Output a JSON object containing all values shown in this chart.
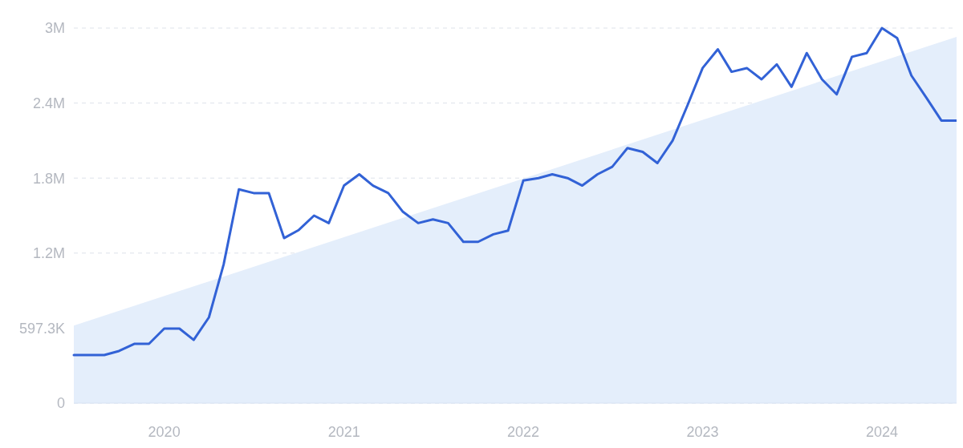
{
  "chart_data": {
    "type": "line",
    "xlim": [
      "2019-07",
      "2024-06"
    ],
    "ylim": [
      0,
      3000000
    ],
    "yticks": [
      0,
      {
        "value": 597300,
        "label": "597.3K"
      },
      {
        "value": 1200000,
        "label": "1.2M"
      },
      {
        "value": 1800000,
        "label": "1.8M"
      },
      {
        "value": 2400000,
        "label": "2.4M"
      },
      {
        "value": 3000000,
        "label": "3M"
      }
    ],
    "xticks": [
      {
        "value": "2020-01",
        "label": "2020"
      },
      {
        "value": "2021-01",
        "label": "2021"
      },
      {
        "value": "2022-01",
        "label": "2022"
      },
      {
        "value": "2023-01",
        "label": "2023"
      },
      {
        "value": "2024-01",
        "label": "2024"
      }
    ],
    "grid": "y",
    "line_style": "solid",
    "series": [
      {
        "type": "area",
        "color": "#e4eefb",
        "x": [
          "2019-07",
          "2024-06"
        ],
        "values": [
          620000,
          2930000
        ]
      },
      {
        "color": "#3262d6",
        "x": [
          "2019-07",
          "2019-08",
          "2019-09",
          "2019-10",
          "2019-11",
          "2019-12",
          "2020-01",
          "2020-02",
          "2020-03",
          "2020-04",
          "2020-05",
          "2020-06",
          "2020-07",
          "2020-08",
          "2020-09",
          "2020-10",
          "2020-11",
          "2020-12",
          "2021-01",
          "2021-02",
          "2021-03",
          "2021-04",
          "2021-05",
          "2021-06",
          "2021-07",
          "2021-08",
          "2021-09",
          "2021-10",
          "2021-11",
          "2021-12",
          "2022-01",
          "2022-02",
          "2022-03",
          "2022-04",
          "2022-05",
          "2022-06",
          "2022-07",
          "2022-08",
          "2022-09",
          "2022-10",
          "2022-11",
          "2022-12",
          "2023-01",
          "2023-02",
          "2023-03",
          "2023-04",
          "2023-05",
          "2023-06",
          "2023-07",
          "2023-08",
          "2023-09",
          "2023-10",
          "2023-11",
          "2023-12",
          "2024-01",
          "2024-02",
          "2024-03",
          "2024-04",
          "2024-05",
          "2024-06"
        ],
        "values": [
          385000,
          385000,
          385000,
          417000,
          474000,
          474000,
          596000,
          596000,
          506000,
          686000,
          1110000,
          1710000,
          1680000,
          1680000,
          1320000,
          1385000,
          1500000,
          1440000,
          1740000,
          1830000,
          1740000,
          1680000,
          1530000,
          1440000,
          1470000,
          1440000,
          1290000,
          1290000,
          1350000,
          1380000,
          1780000,
          1800000,
          1830000,
          1800000,
          1740000,
          1830000,
          1890000,
          2040000,
          2010000,
          1920000,
          2100000,
          2380000,
          2680000,
          2830000,
          2650000,
          2680000,
          2590000,
          2710000,
          2530000,
          2800000,
          2590000,
          2470000,
          2770000,
          2800000,
          3000000,
          2920000,
          2620000,
          2440000,
          2260000,
          2260000
        ]
      }
    ]
  }
}
